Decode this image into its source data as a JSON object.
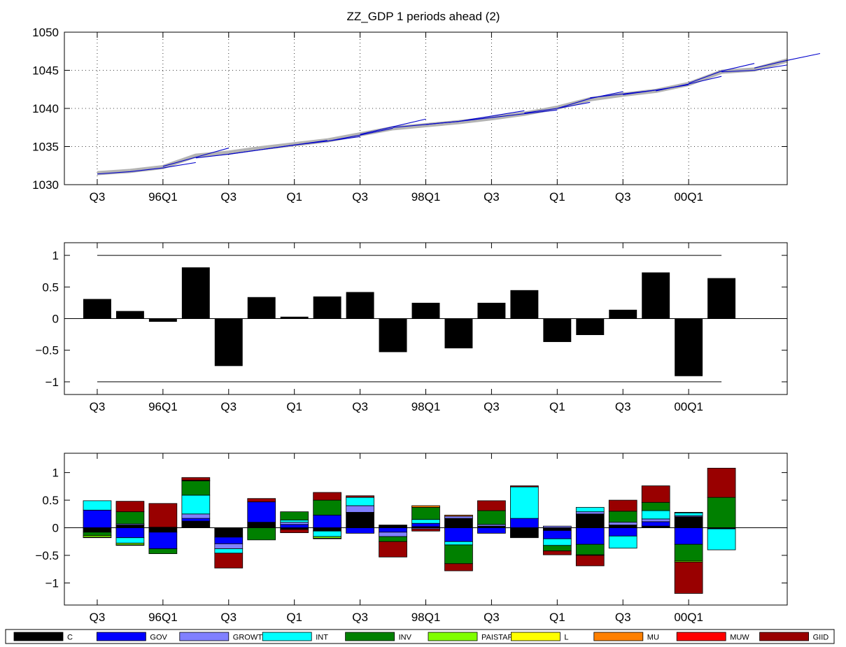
{
  "figure": {
    "title": "ZZ_GDP 1 periods ahead (2)"
  },
  "chart_data": [
    {
      "type": "line",
      "panel": "forecast",
      "x_tick_labels": [
        "Q3",
        "96Q1",
        "Q3",
        "Q1",
        "Q3",
        "98Q1",
        "Q3",
        "Q1",
        "Q3",
        "00Q1"
      ],
      "x_tick_index": [
        0,
        2,
        4,
        6,
        8,
        10,
        12,
        14,
        16,
        18
      ],
      "y_ticks": [
        1030,
        1035,
        1040,
        1045,
        1050
      ],
      "ylim": [
        1030,
        1050
      ],
      "grid": true,
      "series": [
        {
          "role": "actual",
          "color": "#b3b3b3",
          "values": [
            1031.5,
            1031.8,
            1032.3,
            1033.8,
            1034.2,
            1034.8,
            1035.3,
            1035.8,
            1036.6,
            1037.4,
            1037.8,
            1038.2,
            1038.7,
            1039.3,
            1040.1,
            1041.2,
            1041.8,
            1042.3,
            1043.2,
            1044.8,
            1045.1,
            1046.3
          ]
        },
        {
          "role": "forecast",
          "color": "#0000cc",
          "segments": [
            {
              "start": 0,
              "values": [
                1031.4,
                1031.7,
                1032.2,
                1032.9
              ]
            },
            {
              "start": 2,
              "values": [
                1032.4,
                1033.6,
                1034.8
              ]
            },
            {
              "start": 3,
              "values": [
                1033.5,
                1034.0,
                1034.6
              ]
            },
            {
              "start": 4,
              "values": [
                1034.0,
                1034.6,
                1035.2
              ]
            },
            {
              "start": 5,
              "values": [
                1034.6,
                1035.2,
                1035.8
              ]
            },
            {
              "start": 6,
              "values": [
                1035.2,
                1035.7,
                1036.3
              ]
            },
            {
              "start": 7,
              "values": [
                1035.7,
                1036.5,
                1037.4
              ]
            },
            {
              "start": 8,
              "values": [
                1036.6,
                1037.6,
                1038.6
              ]
            },
            {
              "start": 9,
              "values": [
                1037.5,
                1037.9,
                1038.3
              ]
            },
            {
              "start": 10,
              "values": [
                1037.9,
                1038.3,
                1038.8
              ]
            },
            {
              "start": 11,
              "values": [
                1038.3,
                1039.0,
                1039.7
              ]
            },
            {
              "start": 12,
              "values": [
                1038.8,
                1039.3,
                1039.8
              ]
            },
            {
              "start": 13,
              "values": [
                1039.4,
                1040.0,
                1040.8
              ]
            },
            {
              "start": 14,
              "values": [
                1040.0,
                1041.3,
                1042.2
              ]
            },
            {
              "start": 15,
              "values": [
                1041.4,
                1041.9,
                1042.4
              ]
            },
            {
              "start": 16,
              "values": [
                1041.8,
                1042.4,
                1043.1
              ]
            },
            {
              "start": 17,
              "values": [
                1042.3,
                1043.2,
                1044.2
              ]
            },
            {
              "start": 18,
              "values": [
                1043.3,
                1044.9,
                1045.9
              ]
            },
            {
              "start": 19,
              "values": [
                1044.8,
                1045.0,
                1045.7
              ]
            },
            {
              "start": 20,
              "values": [
                1045.3,
                1046.3,
                1047.2
              ]
            }
          ]
        }
      ]
    },
    {
      "type": "bar",
      "panel": "normalized-errors",
      "x_tick_labels": [
        "Q3",
        "96Q1",
        "Q3",
        "Q1",
        "Q3",
        "98Q1",
        "Q3",
        "Q1",
        "Q3",
        "00Q1"
      ],
      "x_tick_index": [
        0,
        2,
        4,
        6,
        8,
        10,
        12,
        14,
        16,
        18
      ],
      "y_ticks": [
        -1,
        -0.5,
        0,
        0.5,
        1
      ],
      "y_tick_labels": [
        "−1",
        "−0.5",
        "0",
        "0.5",
        "1"
      ],
      "ylim": [
        -1.2,
        1.2
      ],
      "reference_lines": [
        1,
        -1
      ],
      "color": "#000000",
      "values": [
        0.31,
        0.12,
        -0.05,
        0.81,
        -0.75,
        0.34,
        0.03,
        0.35,
        0.42,
        -0.53,
        0.25,
        -0.47,
        0.25,
        0.45,
        -0.37,
        -0.26,
        0.14,
        0.73,
        -0.91,
        0.64
      ]
    },
    {
      "type": "bar",
      "panel": "decomposition",
      "stacked": true,
      "x_tick_labels": [
        "Q3",
        "96Q1",
        "Q3",
        "Q1",
        "Q3",
        "98Q1",
        "Q3",
        "Q1",
        "Q3",
        "00Q1"
      ],
      "x_tick_index": [
        0,
        2,
        4,
        6,
        8,
        10,
        12,
        14,
        16,
        18
      ],
      "y_ticks": [
        -1,
        -0.5,
        0,
        0.5,
        1
      ],
      "y_tick_labels": [
        "−1",
        "−0.5",
        "0",
        "0.5",
        "1"
      ],
      "ylim": [
        -1.4,
        1.35
      ],
      "legend_position": "bottom",
      "series": [
        {
          "name": "C",
          "color": "#000000",
          "values": [
            -0.08,
            0.05,
            -0.08,
            0.12,
            -0.17,
            0.1,
            -0.03,
            -0.05,
            0.28,
            0.05,
            0.02,
            0.17,
            0.03,
            -0.18,
            -0.05,
            0.25,
            0.05,
            0.03,
            0.2,
            -0.02
          ]
        },
        {
          "name": "GOV",
          "color": "#0000ff",
          "values": [
            0.32,
            -0.18,
            -0.3,
            0.05,
            -0.12,
            0.37,
            0.06,
            0.23,
            -0.1,
            -0.08,
            0.06,
            -0.25,
            -0.1,
            0.17,
            -0.15,
            -0.3,
            -0.15,
            0.08,
            -0.3,
            0.0
          ]
        },
        {
          "name": "GROWTH",
          "color": "#8080ff",
          "values": [
            0.0,
            0.02,
            0.01,
            0.08,
            -0.09,
            0.0,
            0.04,
            -0.01,
            0.12,
            -0.08,
            -0.02,
            0.04,
            0.03,
            0.0,
            0.03,
            0.04,
            0.05,
            0.05,
            0.02,
            0.0
          ]
        },
        {
          "name": "INT",
          "color": "#00ffff",
          "values": [
            0.17,
            -0.1,
            0.0,
            0.34,
            -0.08,
            0.0,
            0.04,
            -0.1,
            0.15,
            0.0,
            0.07,
            -0.06,
            0.0,
            0.57,
            -0.12,
            0.08,
            -0.22,
            0.15,
            0.05,
            -0.38
          ]
        },
        {
          "name": "INV",
          "color": "#008000",
          "values": [
            -0.06,
            0.22,
            -0.09,
            0.26,
            0.0,
            -0.22,
            0.15,
            0.27,
            0.0,
            -0.09,
            0.22,
            -0.34,
            0.25,
            0.0,
            -0.1,
            -0.19,
            0.2,
            0.15,
            -0.3,
            0.55
          ]
        },
        {
          "name": "PAISTAR",
          "color": "#80ff00",
          "values": [
            -0.03,
            -0.03,
            0.0,
            0.01,
            0.0,
            0.0,
            0.0,
            -0.03,
            0.0,
            0.0,
            0.0,
            0.0,
            0.0,
            0.0,
            0.0,
            -0.01,
            0.0,
            0.0,
            -0.02,
            0.0
          ]
        },
        {
          "name": "L",
          "color": "#ffff00",
          "values": [
            -0.01,
            -0.01,
            0.0,
            0.0,
            0.0,
            0.0,
            0.0,
            -0.01,
            0.0,
            0.0,
            0.0,
            0.0,
            0.0,
            0.0,
            0.0,
            0.0,
            0.0,
            0.0,
            0.0,
            0.0
          ]
        },
        {
          "name": "MU",
          "color": "#ff8000",
          "values": [
            0.0,
            0.0,
            0.0,
            0.0,
            0.0,
            0.0,
            0.0,
            0.0,
            0.0,
            0.0,
            0.03,
            0.02,
            0.0,
            0.0,
            0.0,
            0.0,
            0.0,
            0.0,
            0.01,
            0.0
          ]
        },
        {
          "name": "MUW",
          "color": "#ff0000",
          "values": [
            0.0,
            0.0,
            0.0,
            0.0,
            0.0,
            0.0,
            0.0,
            0.0,
            0.0,
            0.0,
            0.0,
            0.0,
            0.0,
            0.0,
            0.0,
            0.0,
            0.0,
            0.0,
            0.0,
            0.0
          ]
        },
        {
          "name": "GIID",
          "color": "#990000",
          "values": [
            0.0,
            0.19,
            0.43,
            0.05,
            -0.27,
            0.06,
            -0.06,
            0.14,
            0.03,
            -0.28,
            -0.04,
            -0.13,
            0.18,
            0.02,
            -0.07,
            -0.19,
            0.2,
            0.3,
            -0.57,
            0.53
          ]
        }
      ]
    }
  ]
}
